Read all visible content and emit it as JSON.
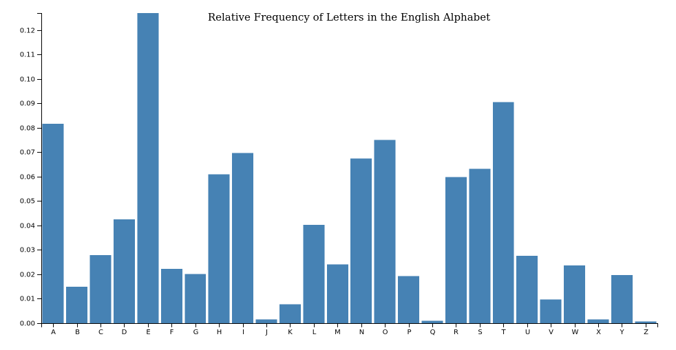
{
  "chart_data": {
    "type": "bar",
    "title": "Relative Frequency of Letters in the English Alphabet",
    "xlabel": "",
    "ylabel": "",
    "categories": [
      "A",
      "B",
      "C",
      "D",
      "E",
      "F",
      "G",
      "H",
      "I",
      "J",
      "K",
      "L",
      "M",
      "N",
      "O",
      "P",
      "Q",
      "R",
      "S",
      "T",
      "U",
      "V",
      "W",
      "X",
      "Y",
      "Z"
    ],
    "values": [
      0.08167,
      0.01492,
      0.02782,
      0.04253,
      0.12702,
      0.02228,
      0.02015,
      0.06094,
      0.06966,
      0.00153,
      0.00772,
      0.04025,
      0.02406,
      0.06749,
      0.07507,
      0.01929,
      0.00095,
      0.05987,
      0.06327,
      0.09056,
      0.02758,
      0.00978,
      0.0236,
      0.0015,
      0.01974,
      0.00074
    ],
    "ylim": [
      0,
      0.12702
    ],
    "yticks": [
      "0.00",
      "0.01",
      "0.02",
      "0.03",
      "0.04",
      "0.05",
      "0.06",
      "0.07",
      "0.08",
      "0.09",
      "0.10",
      "0.11",
      "0.12"
    ],
    "grid": false,
    "bar_color": "#4682b4"
  }
}
